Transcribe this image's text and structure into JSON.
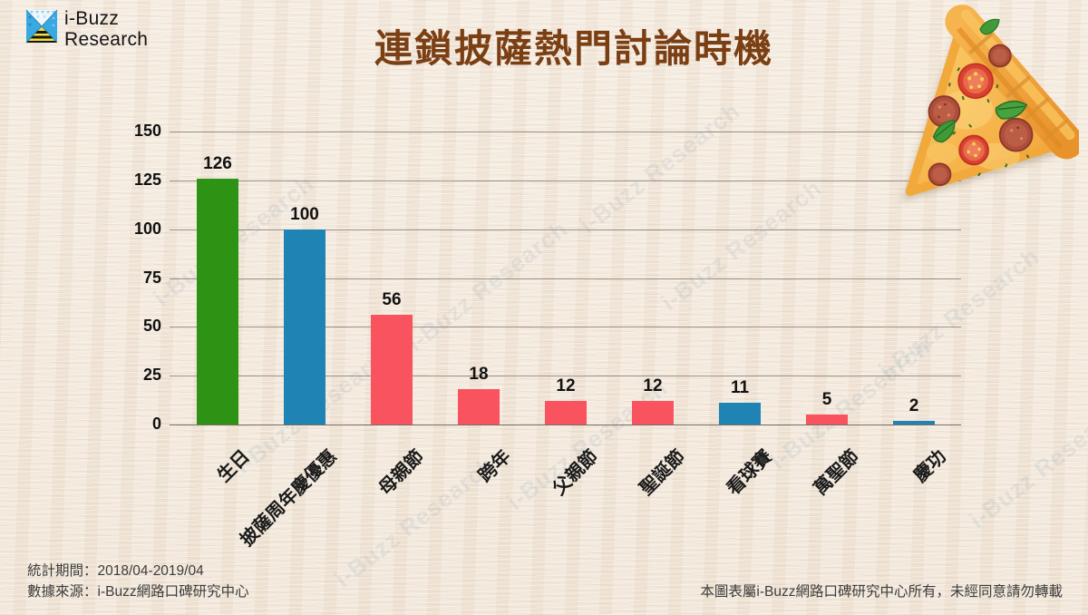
{
  "header": {
    "logo": {
      "icon": "ibuzz-logo-icon",
      "line1": "i-Buzz",
      "line2": "Research"
    },
    "title": "連鎖披薩熱門討論時機"
  },
  "decoration": {
    "icon": "pizza-slice-illustration"
  },
  "watermark": {
    "text": "i-Buzz Research"
  },
  "chart_data": {
    "type": "bar",
    "title": "連鎖披薩熱門討論時機",
    "categories": [
      "生日",
      "披薩周年慶優惠",
      "母親節",
      "跨年",
      "父親節",
      "聖誕節",
      "看球賽",
      "萬聖節",
      "慶功"
    ],
    "values": [
      126,
      100,
      56,
      18,
      12,
      12,
      11,
      5,
      2
    ],
    "bar_colors": [
      "#2e9315",
      "#1f83b4",
      "#f8535f",
      "#f8535f",
      "#f8535f",
      "#f8535f",
      "#1f83b4",
      "#f8535f",
      "#1f83b4"
    ],
    "xlabel": "",
    "ylabel": "",
    "ylim": [
      0,
      150
    ],
    "yticks": [
      0,
      25,
      50,
      75,
      100,
      125,
      150
    ],
    "grid": true,
    "legend": false
  },
  "footer": {
    "period": "統計期間：2018/04-2019/04",
    "source": "數據來源：i-Buzz網路口碑研究中心",
    "copyright": "本圖表屬i-Buzz網路口碑研究中心所有，未經同意請勿轉載"
  },
  "colors": {
    "title": "#7b3f14",
    "gridline": "#8c8278",
    "background": "#f2e8db",
    "green_bar": "#2e9315",
    "blue_bar": "#1f83b4",
    "pink_bar": "#f8535f"
  }
}
